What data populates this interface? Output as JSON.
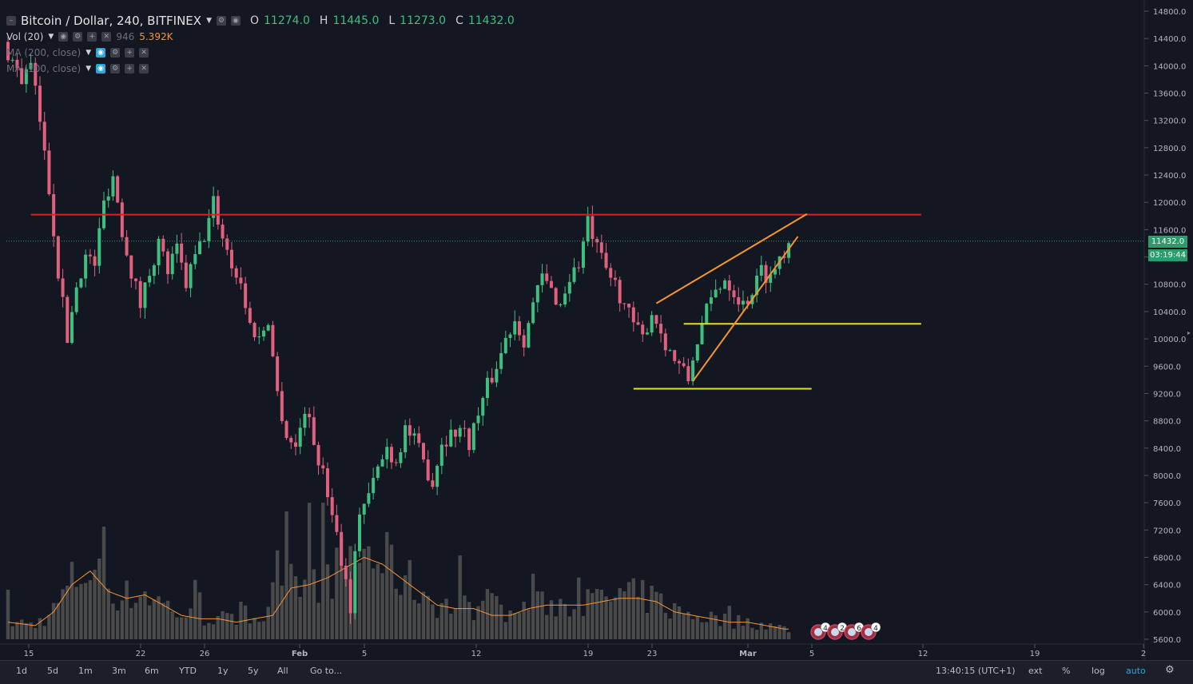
{
  "symbol": {
    "title": "Bitcoin / Dollar, 240, BITFINEX",
    "o_label": "O",
    "o": "11274.0",
    "h_label": "H",
    "h": "11445.0",
    "l_label": "L",
    "l": "11273.0",
    "c_label": "C",
    "c": "11432.0"
  },
  "indicators": {
    "vol_label": "Vol (20)",
    "vol_value_dim": "946",
    "vol_value": "5.392K",
    "ma1_label": "MA (200, close)",
    "ma2_label": "MA (100, close)"
  },
  "price_axis": {
    "ticks": [
      "14800.0",
      "14400.0",
      "14000.0",
      "13600.0",
      "13200.0",
      "12800.0",
      "12400.0",
      "12000.0",
      "11600.0",
      "11200.0",
      "10800.0",
      "10400.0",
      "10000.0",
      "9600.0",
      "9200.0",
      "8800.0",
      "8400.0",
      "8000.0",
      "7600.0",
      "7200.0",
      "6800.0",
      "6400.0",
      "6000.0",
      "5600.0"
    ],
    "last_price": "11432.0",
    "countdown": "03:19:44"
  },
  "time_axis": {
    "ticks": [
      "15",
      "22",
      "26",
      "Feb",
      "5",
      "12",
      "19",
      "23",
      "Mar",
      "5",
      "12",
      "19",
      "2"
    ]
  },
  "bottom_bar": {
    "ranges": [
      "1d",
      "5d",
      "1m",
      "3m",
      "6m",
      "YTD",
      "1y",
      "5y",
      "All"
    ],
    "goto": "Go to...",
    "clock": "13:40:15 (UTC+1)",
    "ext": "ext",
    "percent": "%",
    "log": "log",
    "auto": "auto"
  },
  "events": [
    "4",
    "2",
    "6",
    "4"
  ],
  "colors": {
    "background": "#131722",
    "up": "#3fbf7f",
    "down": "#e0607e",
    "resistance": "#e01e1e",
    "wedge": "#f7932f",
    "support": "#e8e020",
    "accent": "#2aa7d9",
    "volume_ma": "#f7932f"
  },
  "chart_data": {
    "type": "candlestick",
    "instrument": "BTCUSD",
    "interval": "240",
    "x_ticks": [
      "15",
      "22",
      "26",
      "Feb",
      "5",
      "12",
      "19",
      "23",
      "Mar",
      "5",
      "12",
      "19",
      "2"
    ],
    "ylim": [
      5600,
      14800
    ],
    "close_path": [
      [
        0,
        14200
      ],
      [
        3,
        13800
      ],
      [
        5,
        14000
      ],
      [
        7,
        13200
      ],
      [
        9,
        12200
      ],
      [
        11,
        11000
      ],
      [
        13,
        10000
      ],
      [
        15,
        10800
      ],
      [
        17,
        11200
      ],
      [
        19,
        11100
      ],
      [
        21,
        12000
      ],
      [
        23,
        12400
      ],
      [
        25,
        11600
      ],
      [
        27,
        11000
      ],
      [
        29,
        10500
      ],
      [
        31,
        11000
      ],
      [
        33,
        11400
      ],
      [
        35,
        11000
      ],
      [
        37,
        11300
      ],
      [
        39,
        10800
      ],
      [
        41,
        11200
      ],
      [
        43,
        11500
      ],
      [
        45,
        12000
      ],
      [
        47,
        11500
      ],
      [
        49,
        11100
      ],
      [
        51,
        10800
      ],
      [
        53,
        10200
      ],
      [
        55,
        10000
      ],
      [
        57,
        10300
      ],
      [
        59,
        9200
      ],
      [
        61,
        8600
      ],
      [
        63,
        8400
      ],
      [
        65,
        9000
      ],
      [
        67,
        8500
      ],
      [
        69,
        8000
      ],
      [
        71,
        7500
      ],
      [
        73,
        6800
      ],
      [
        75,
        6100
      ],
      [
        77,
        7500
      ],
      [
        79,
        7700
      ],
      [
        81,
        8100
      ],
      [
        83,
        8400
      ],
      [
        85,
        8200
      ],
      [
        87,
        8700
      ],
      [
        89,
        8500
      ],
      [
        91,
        8200
      ],
      [
        93,
        7900
      ],
      [
        95,
        8500
      ],
      [
        97,
        8600
      ],
      [
        99,
        8700
      ],
      [
        101,
        8500
      ],
      [
        103,
        8900
      ],
      [
        105,
        9300
      ],
      [
        107,
        9600
      ],
      [
        109,
        10000
      ],
      [
        111,
        10300
      ],
      [
        113,
        10000
      ],
      [
        115,
        10500
      ],
      [
        117,
        10900
      ],
      [
        119,
        10700
      ],
      [
        121,
        10500
      ],
      [
        123,
        10900
      ],
      [
        125,
        11100
      ],
      [
        127,
        11700
      ],
      [
        129,
        11300
      ],
      [
        131,
        11000
      ],
      [
        133,
        10800
      ],
      [
        135,
        10500
      ],
      [
        137,
        10200
      ],
      [
        139,
        10000
      ],
      [
        141,
        10400
      ],
      [
        143,
        10100
      ],
      [
        145,
        9800
      ],
      [
        147,
        9600
      ],
      [
        149,
        9400
      ],
      [
        151,
        10000
      ],
      [
        153,
        10400
      ],
      [
        155,
        10700
      ],
      [
        157,
        10900
      ],
      [
        159,
        10700
      ],
      [
        161,
        10500
      ],
      [
        163,
        10700
      ],
      [
        165,
        11000
      ],
      [
        167,
        10900
      ],
      [
        169,
        11200
      ],
      [
        171,
        11432
      ]
    ],
    "volume_ma_path": [
      [
        0,
        5850
      ],
      [
        6,
        5800
      ],
      [
        10,
        6000
      ],
      [
        14,
        6400
      ],
      [
        18,
        6600
      ],
      [
        22,
        6300
      ],
      [
        26,
        6200
      ],
      [
        30,
        6250
      ],
      [
        34,
        6100
      ],
      [
        38,
        5950
      ],
      [
        42,
        5900
      ],
      [
        46,
        5900
      ],
      [
        50,
        5850
      ],
      [
        54,
        5900
      ],
      [
        58,
        5950
      ],
      [
        62,
        6350
      ],
      [
        66,
        6400
      ],
      [
        70,
        6500
      ],
      [
        74,
        6650
      ],
      [
        78,
        6800
      ],
      [
        82,
        6700
      ],
      [
        86,
        6500
      ],
      [
        90,
        6300
      ],
      [
        94,
        6100
      ],
      [
        98,
        6050
      ],
      [
        102,
        6050
      ],
      [
        106,
        5950
      ],
      [
        110,
        5950
      ],
      [
        114,
        6050
      ],
      [
        118,
        6100
      ],
      [
        122,
        6100
      ],
      [
        126,
        6100
      ],
      [
        130,
        6150
      ],
      [
        134,
        6200
      ],
      [
        138,
        6200
      ],
      [
        142,
        6150
      ],
      [
        146,
        6000
      ],
      [
        150,
        5950
      ],
      [
        154,
        5900
      ],
      [
        158,
        5850
      ],
      [
        162,
        5850
      ],
      [
        166,
        5800
      ],
      [
        170,
        5750
      ]
    ],
    "horizontal_lines": [
      {
        "price": 11820,
        "from": 5,
        "to": 200
      },
      {
        "price": 10220,
        "from": 148,
        "to": 200
      },
      {
        "price": 9270,
        "from": 137,
        "to": 176
      }
    ],
    "trend_lines": [
      {
        "from": [
          142,
          10520
        ],
        "to": [
          175,
          11830
        ]
      },
      {
        "from": [
          150,
          9380
        ],
        "to": [
          173,
          11500
        ]
      }
    ]
  }
}
